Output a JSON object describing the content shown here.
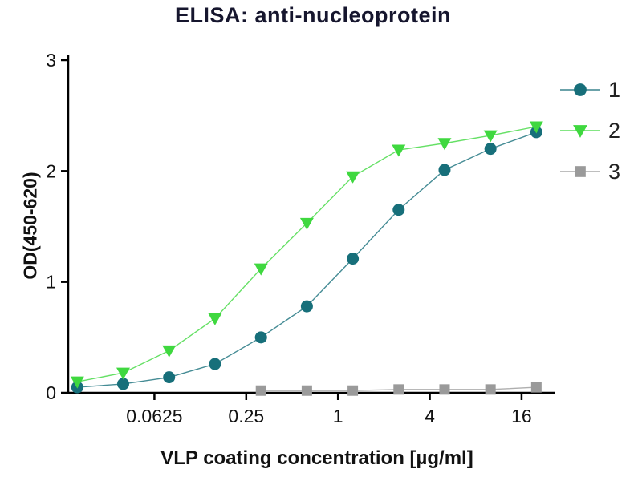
{
  "chart_data": {
    "type": "line",
    "title": "ELISA: anti-nucleoprotein",
    "xlabel": "VLP coating concentration [µg/ml]",
    "ylabel": "OD(450-620)",
    "x_scale": "log2",
    "xlim": [
      0.017,
      26
    ],
    "ylim": [
      0,
      3
    ],
    "x_ticks": [
      0.0625,
      0.25,
      1,
      4,
      16
    ],
    "x_tick_labels": [
      "0.0625",
      "0.25",
      "1",
      "4",
      "16"
    ],
    "y_ticks": [
      0,
      1,
      2,
      3
    ],
    "y_tick_labels": [
      "0",
      "1",
      "2",
      "3"
    ],
    "grid": false,
    "legend_position": "right",
    "x": [
      0.0195,
      0.039,
      0.078,
      0.156,
      0.3125,
      0.625,
      1.25,
      2.5,
      5,
      10,
      20
    ],
    "series": [
      {
        "name": "1",
        "marker": "circle",
        "color": "#176f7a",
        "values": [
          0.05,
          0.08,
          0.14,
          0.26,
          0.5,
          0.78,
          1.21,
          1.65,
          2.01,
          2.2,
          2.35
        ]
      },
      {
        "name": "2",
        "marker": "triangle-down",
        "color": "#3fd83f",
        "values": [
          0.1,
          0.18,
          0.38,
          0.67,
          1.12,
          1.53,
          1.95,
          2.19,
          2.25,
          2.32,
          2.4
        ]
      },
      {
        "name": "3",
        "marker": "square",
        "color": "#9a9a9a",
        "values": [
          null,
          null,
          null,
          null,
          0.02,
          0.02,
          0.02,
          0.03,
          0.03,
          0.03,
          0.05
        ]
      }
    ],
    "axis_color": "#000000",
    "text_color": "#111111"
  }
}
